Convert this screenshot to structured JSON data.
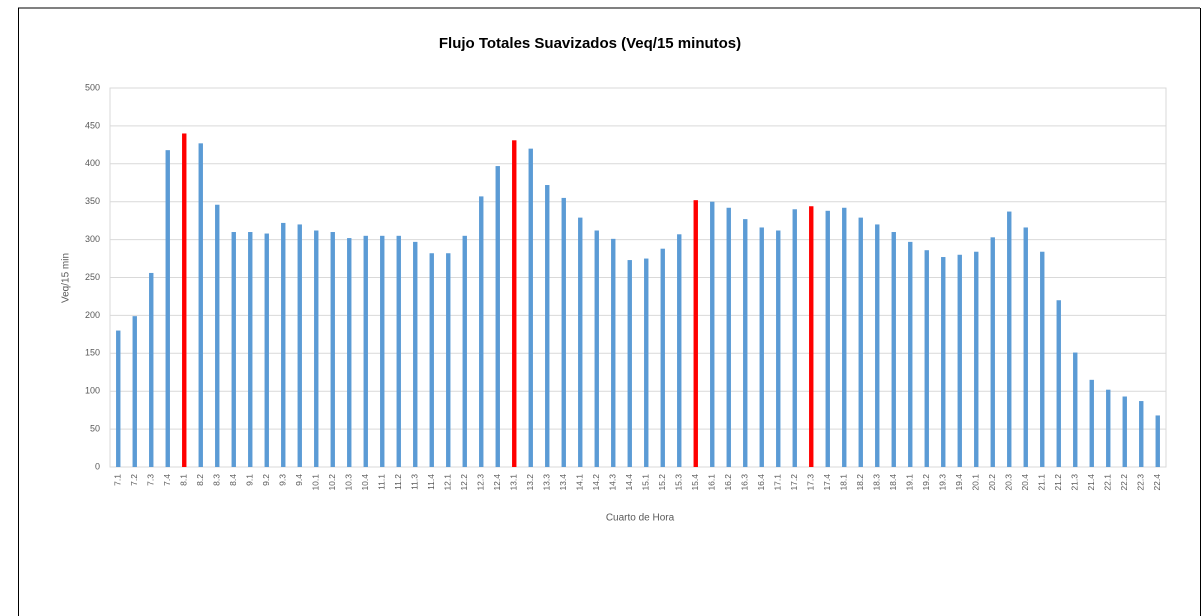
{
  "chart_data": {
    "type": "bar",
    "title": "Flujo Totales Suavizados (Veq/15 minutos)",
    "y_label": "Veq/15 min",
    "x_label": "Cuarto de Hora",
    "categories": [
      "7.1",
      "7.2",
      "7.3",
      "7.4",
      "8.1",
      "8.2",
      "8.3",
      "8.4",
      "9.1",
      "9.2",
      "9.3",
      "9.4",
      "10.1",
      "10.2",
      "10.3",
      "10.4",
      "11.1",
      "11.2",
      "11.3",
      "11.4",
      "12.1",
      "12.2",
      "12.3",
      "12.4",
      "13.1",
      "13.2",
      "13.3",
      "13.4",
      "14.1",
      "14.2",
      "14.3",
      "14.4",
      "15.1",
      "15.2",
      "15.3",
      "15.4",
      "16.1",
      "16.2",
      "16.3",
      "16.4",
      "17.1",
      "17.2",
      "17.3",
      "17.4",
      "18.1",
      "18.2",
      "18.3",
      "18.4",
      "19.1",
      "19.2",
      "19.3",
      "19.4",
      "20.1",
      "20.2",
      "20.3",
      "20.4",
      "21.1",
      "21.2",
      "21.3",
      "21.4",
      "22.1",
      "22.2",
      "22.3",
      "22.4"
    ],
    "values": [
      180,
      199,
      256,
      418,
      440,
      427,
      346,
      310,
      310,
      308,
      322,
      320,
      312,
      310,
      302,
      305,
      305,
      305,
      297,
      282,
      282,
      305,
      357,
      397,
      431,
      420,
      372,
      355,
      329,
      312,
      301,
      273,
      275,
      288,
      307,
      352,
      350,
      342,
      327,
      316,
      312,
      340,
      344,
      338,
      342,
      329,
      320,
      310,
      297,
      286,
      277,
      280,
      284,
      303,
      337,
      316,
      284,
      220,
      151,
      115,
      102,
      93,
      87,
      68
    ],
    "colors": [
      "#5b9bd5",
      "#5b9bd5",
      "#5b9bd5",
      "#5b9bd5",
      "#ff0000",
      "#5b9bd5",
      "#5b9bd5",
      "#5b9bd5",
      "#5b9bd5",
      "#5b9bd5",
      "#5b9bd5",
      "#5b9bd5",
      "#5b9bd5",
      "#5b9bd5",
      "#5b9bd5",
      "#5b9bd5",
      "#5b9bd5",
      "#5b9bd5",
      "#5b9bd5",
      "#5b9bd5",
      "#5b9bd5",
      "#5b9bd5",
      "#5b9bd5",
      "#5b9bd5",
      "#ff0000",
      "#5b9bd5",
      "#5b9bd5",
      "#5b9bd5",
      "#5b9bd5",
      "#5b9bd5",
      "#5b9bd5",
      "#5b9bd5",
      "#5b9bd5",
      "#5b9bd5",
      "#5b9bd5",
      "#ff0000",
      "#5b9bd5",
      "#5b9bd5",
      "#5b9bd5",
      "#5b9bd5",
      "#5b9bd5",
      "#5b9bd5",
      "#ff0000",
      "#5b9bd5",
      "#5b9bd5",
      "#5b9bd5",
      "#5b9bd5",
      "#5b9bd5",
      "#5b9bd5",
      "#5b9bd5",
      "#5b9bd5",
      "#5b9bd5",
      "#5b9bd5",
      "#5b9bd5",
      "#5b9bd5",
      "#5b9bd5",
      "#5b9bd5",
      "#5b9bd5",
      "#5b9bd5",
      "#5b9bd5",
      "#5b9bd5",
      "#5b9bd5",
      "#5b9bd5",
      "#5b9bd5"
    ],
    "ylim": [
      0,
      500
    ],
    "yticks": [
      0,
      50,
      100,
      150,
      200,
      250,
      300,
      350,
      400,
      450,
      500
    ],
    "grid": true
  }
}
